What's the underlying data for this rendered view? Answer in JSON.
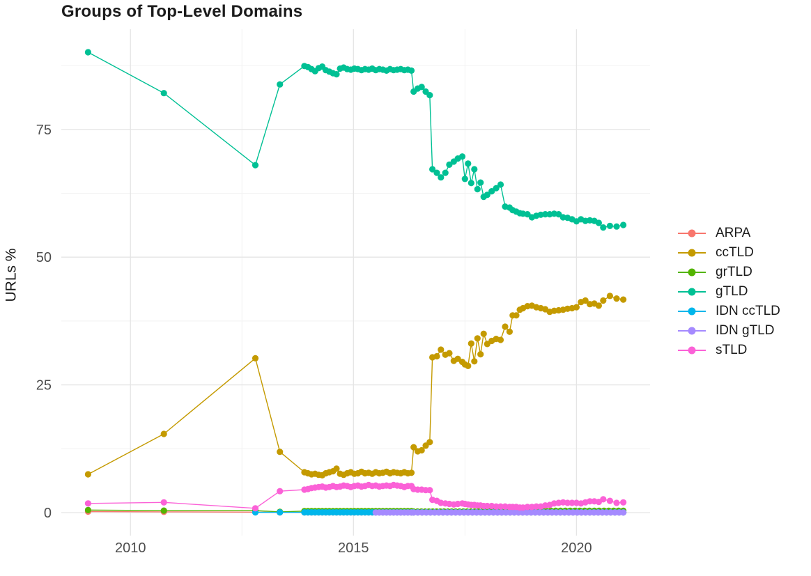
{
  "chart_data": {
    "type": "line",
    "title": "Groups of Top-Level Domains",
    "xlabel": "",
    "ylabel": "URLs %",
    "xlim": [
      2008.45,
      2021.65
    ],
    "ylim": [
      -4.5,
      94.6
    ],
    "x_ticks": [
      2010,
      2015,
      2020
    ],
    "x_tick_labels": [
      "2010",
      "2015",
      "2020"
    ],
    "x_minor": [
      2012.5,
      2017.5
    ],
    "y_ticks": [
      0,
      25,
      50,
      75
    ],
    "y_tick_labels": [
      "0",
      "25",
      "50",
      "75"
    ],
    "y_minor": [
      12.5,
      37.5,
      62.5,
      87.5
    ],
    "grid": true,
    "legend_position": "right",
    "colors": {
      "major_grid": "#e5e5e5",
      "minor_grid": "#f2f2f2",
      "tick_text": "#4d4d4d"
    },
    "series": [
      {
        "name": "ARPA",
        "color": "#F8766D",
        "points": [
          [
            2009.05,
            0.2
          ],
          [
            2010.75,
            0.15
          ],
          [
            2012.8,
            0.1
          ],
          [
            2013.35,
            0.05
          ],
          {
            "from": 2013.9,
            "to": 2016.3,
            "n": 31,
            "v": 0.05
          },
          {
            "from": 2016.35,
            "to": 2021.05,
            "n": 51,
            "v": 0.05
          }
        ]
      },
      {
        "name": "ccTLD",
        "color": "#C49A00",
        "points": [
          [
            2009.05,
            7.5
          ],
          [
            2010.75,
            15.4
          ],
          [
            2012.8,
            30.2
          ],
          [
            2013.35,
            11.9
          ],
          [
            2013.9,
            7.9
          ],
          [
            2013.98,
            7.7
          ],
          [
            2014.06,
            7.5
          ],
          [
            2014.14,
            7.6
          ],
          [
            2014.22,
            7.4
          ],
          [
            2014.3,
            7.3
          ],
          [
            2014.38,
            7.7
          ],
          [
            2014.46,
            7.9
          ],
          [
            2014.54,
            8.1
          ],
          [
            2014.62,
            8.6
          ],
          [
            2014.7,
            7.6
          ],
          [
            2014.78,
            7.4
          ],
          [
            2014.86,
            7.7
          ],
          [
            2014.94,
            7.9
          ],
          [
            2015.02,
            7.6
          ],
          [
            2015.1,
            7.7
          ],
          [
            2015.18,
            8.0
          ],
          [
            2015.26,
            7.7
          ],
          [
            2015.34,
            7.8
          ],
          [
            2015.42,
            7.6
          ],
          [
            2015.5,
            7.9
          ],
          [
            2015.58,
            7.7
          ],
          [
            2015.66,
            7.8
          ],
          [
            2015.74,
            8.0
          ],
          [
            2015.82,
            7.7
          ],
          [
            2015.9,
            7.9
          ],
          [
            2015.98,
            7.8
          ],
          [
            2016.06,
            7.7
          ],
          [
            2016.14,
            7.9
          ],
          [
            2016.22,
            7.7
          ],
          [
            2016.3,
            7.8
          ],
          [
            2016.35,
            12.8
          ],
          [
            2016.44,
            12.0
          ],
          [
            2016.53,
            12.2
          ],
          [
            2016.62,
            13.1
          ],
          [
            2016.71,
            13.8
          ],
          [
            2016.77,
            30.4
          ],
          [
            2016.87,
            30.6
          ],
          [
            2016.96,
            31.9
          ],
          [
            2017.06,
            30.9
          ],
          [
            2017.15,
            31.2
          ],
          [
            2017.25,
            29.7
          ],
          [
            2017.34,
            30.1
          ],
          [
            2017.44,
            29.5
          ],
          [
            2017.5,
            29.0
          ],
          [
            2017.57,
            28.7
          ],
          [
            2017.64,
            33.1
          ],
          [
            2017.71,
            29.6
          ],
          [
            2017.78,
            34.1
          ],
          [
            2017.85,
            31.0
          ],
          [
            2017.92,
            35.0
          ],
          [
            2018.0,
            33.0
          ],
          [
            2018.1,
            33.6
          ],
          [
            2018.2,
            34.0
          ],
          [
            2018.3,
            33.8
          ],
          [
            2018.4,
            36.4
          ],
          [
            2018.5,
            35.4
          ],
          [
            2018.57,
            38.6
          ],
          [
            2018.65,
            38.6
          ],
          [
            2018.73,
            39.7
          ],
          [
            2018.8,
            40.0
          ],
          [
            2018.9,
            40.4
          ],
          [
            2019.0,
            40.5
          ],
          [
            2019.1,
            40.2
          ],
          [
            2019.2,
            40.0
          ],
          [
            2019.3,
            39.8
          ],
          [
            2019.4,
            39.3
          ],
          [
            2019.5,
            39.5
          ],
          [
            2019.6,
            39.6
          ],
          [
            2019.7,
            39.7
          ],
          [
            2019.8,
            39.9
          ],
          [
            2019.9,
            40.0
          ],
          [
            2020.0,
            40.2
          ],
          [
            2020.1,
            41.2
          ],
          [
            2020.2,
            41.5
          ],
          [
            2020.3,
            40.8
          ],
          [
            2020.4,
            40.9
          ],
          [
            2020.5,
            40.5
          ],
          [
            2020.6,
            41.5
          ],
          [
            2020.75,
            42.4
          ],
          [
            2020.9,
            41.9
          ],
          [
            2021.05,
            41.7
          ]
        ]
      },
      {
        "name": "grTLD",
        "color": "#53B400",
        "points": [
          [
            2009.05,
            0.5
          ],
          [
            2010.75,
            0.4
          ],
          [
            2012.8,
            0.4
          ],
          [
            2013.35,
            0.15
          ],
          {
            "from": 2013.9,
            "to": 2016.3,
            "n": 31,
            "v": 0.3
          },
          {
            "from": 2016.35,
            "to": 2019.0,
            "n": 32,
            "v": 0.2
          },
          {
            "from": 2019.1,
            "to": 2021.05,
            "n": 19,
            "v": 0.35
          }
        ]
      },
      {
        "name": "gTLD",
        "color": "#00C094",
        "points": [
          [
            2009.05,
            90.1
          ],
          [
            2010.75,
            82.1
          ],
          [
            2012.8,
            68.0
          ],
          [
            2013.35,
            83.8
          ],
          [
            2013.9,
            87.4
          ],
          [
            2013.98,
            87.2
          ],
          [
            2014.06,
            86.8
          ],
          [
            2014.14,
            86.4
          ],
          [
            2014.22,
            87.0
          ],
          [
            2014.3,
            87.3
          ],
          [
            2014.38,
            86.6
          ],
          [
            2014.46,
            86.3
          ],
          [
            2014.54,
            86.0
          ],
          [
            2014.62,
            85.8
          ],
          [
            2014.7,
            86.9
          ],
          [
            2014.78,
            87.1
          ],
          [
            2014.86,
            86.8
          ],
          [
            2014.94,
            86.7
          ],
          [
            2015.02,
            86.9
          ],
          [
            2015.1,
            86.8
          ],
          [
            2015.18,
            86.6
          ],
          [
            2015.26,
            86.8
          ],
          [
            2015.34,
            86.7
          ],
          [
            2015.42,
            86.9
          ],
          [
            2015.5,
            86.6
          ],
          [
            2015.58,
            86.8
          ],
          [
            2015.66,
            86.7
          ],
          [
            2015.74,
            86.5
          ],
          [
            2015.82,
            86.8
          ],
          [
            2015.9,
            86.6
          ],
          [
            2015.98,
            86.7
          ],
          [
            2016.06,
            86.8
          ],
          [
            2016.14,
            86.6
          ],
          [
            2016.22,
            86.7
          ],
          [
            2016.3,
            86.5
          ],
          [
            2016.35,
            82.4
          ],
          [
            2016.44,
            83.0
          ],
          [
            2016.53,
            83.3
          ],
          [
            2016.62,
            82.4
          ],
          [
            2016.71,
            81.7
          ],
          [
            2016.77,
            67.2
          ],
          [
            2016.87,
            66.5
          ],
          [
            2016.96,
            65.6
          ],
          [
            2017.06,
            66.5
          ],
          [
            2017.15,
            68.1
          ],
          [
            2017.25,
            68.7
          ],
          [
            2017.34,
            69.3
          ],
          [
            2017.44,
            69.7
          ],
          [
            2017.5,
            65.3
          ],
          [
            2017.57,
            68.3
          ],
          [
            2017.64,
            64.5
          ],
          [
            2017.71,
            67.2
          ],
          [
            2017.78,
            63.3
          ],
          [
            2017.85,
            64.6
          ],
          [
            2017.92,
            61.8
          ],
          [
            2018.0,
            62.2
          ],
          [
            2018.1,
            62.9
          ],
          [
            2018.2,
            63.5
          ],
          [
            2018.3,
            64.2
          ],
          [
            2018.4,
            59.9
          ],
          [
            2018.5,
            59.7
          ],
          [
            2018.57,
            59.2
          ],
          [
            2018.65,
            58.9
          ],
          [
            2018.73,
            58.6
          ],
          [
            2018.8,
            58.5
          ],
          [
            2018.9,
            58.4
          ],
          [
            2019.0,
            57.8
          ],
          [
            2019.1,
            58.1
          ],
          [
            2019.2,
            58.3
          ],
          [
            2019.3,
            58.4
          ],
          [
            2019.4,
            58.4
          ],
          [
            2019.5,
            58.5
          ],
          [
            2019.6,
            58.4
          ],
          [
            2019.7,
            57.8
          ],
          [
            2019.8,
            57.7
          ],
          [
            2019.9,
            57.4
          ],
          [
            2020.0,
            57.0
          ],
          [
            2020.1,
            57.4
          ],
          [
            2020.2,
            57.1
          ],
          [
            2020.3,
            57.2
          ],
          [
            2020.4,
            57.1
          ],
          [
            2020.5,
            56.7
          ],
          [
            2020.6,
            55.8
          ],
          [
            2020.75,
            56.1
          ],
          [
            2020.9,
            56.0
          ],
          [
            2021.05,
            56.3
          ]
        ]
      },
      {
        "name": "IDN ccTLD",
        "color": "#00B6EB",
        "points": [
          [
            2012.8,
            0.05
          ],
          [
            2013.35,
            0.05
          ],
          {
            "from": 2013.9,
            "to": 2016.3,
            "n": 31,
            "v": 0.05
          },
          {
            "from": 2016.35,
            "to": 2021.05,
            "n": 51,
            "v": 0.05
          }
        ]
      },
      {
        "name": "IDN gTLD",
        "color": "#A58AFF",
        "points": [
          {
            "from": 2015.5,
            "to": 2016.3,
            "n": 11,
            "v": 0.02
          },
          {
            "from": 2016.35,
            "to": 2021.05,
            "n": 51,
            "v": 0.02
          }
        ]
      },
      {
        "name": "sTLD",
        "color": "#FB61D7",
        "points": [
          [
            2009.05,
            1.8
          ],
          [
            2010.75,
            2.0
          ],
          [
            2012.8,
            0.85
          ],
          [
            2013.35,
            4.2
          ],
          [
            2013.9,
            4.5
          ],
          [
            2013.98,
            4.6
          ],
          [
            2014.06,
            4.8
          ],
          [
            2014.14,
            4.9
          ],
          [
            2014.22,
            5.0
          ],
          [
            2014.3,
            5.1
          ],
          [
            2014.38,
            4.9
          ],
          [
            2014.46,
            5.0
          ],
          [
            2014.54,
            5.2
          ],
          [
            2014.62,
            5.0
          ],
          [
            2014.7,
            5.1
          ],
          [
            2014.78,
            5.3
          ],
          [
            2014.86,
            5.2
          ],
          [
            2014.94,
            5.0
          ],
          [
            2015.02,
            5.2
          ],
          [
            2015.1,
            5.3
          ],
          [
            2015.18,
            5.1
          ],
          [
            2015.26,
            5.2
          ],
          [
            2015.34,
            5.4
          ],
          [
            2015.42,
            5.2
          ],
          [
            2015.5,
            5.3
          ],
          [
            2015.58,
            5.1
          ],
          [
            2015.66,
            5.2
          ],
          [
            2015.74,
            5.3
          ],
          [
            2015.82,
            5.2
          ],
          [
            2015.9,
            5.4
          ],
          [
            2015.98,
            5.3
          ],
          [
            2016.06,
            5.2
          ],
          [
            2016.14,
            5.0
          ],
          [
            2016.22,
            5.2
          ],
          [
            2016.3,
            5.2
          ],
          [
            2016.35,
            4.6
          ],
          [
            2016.44,
            4.5
          ],
          [
            2016.53,
            4.5
          ],
          [
            2016.62,
            4.4
          ],
          [
            2016.71,
            4.4
          ],
          [
            2016.77,
            2.5
          ],
          [
            2016.87,
            2.3
          ],
          [
            2016.96,
            1.9
          ],
          [
            2017.06,
            1.8
          ],
          [
            2017.15,
            1.7
          ],
          [
            2017.25,
            1.6
          ],
          [
            2017.34,
            1.7
          ],
          [
            2017.44,
            1.8
          ],
          [
            2017.5,
            1.7
          ],
          [
            2017.57,
            1.6
          ],
          [
            2017.64,
            1.5
          ],
          [
            2017.71,
            1.5
          ],
          [
            2017.78,
            1.4
          ],
          [
            2017.85,
            1.4
          ],
          [
            2017.92,
            1.3
          ],
          [
            2018.0,
            1.3
          ],
          [
            2018.1,
            1.3
          ],
          [
            2018.2,
            1.2
          ],
          [
            2018.3,
            1.2
          ],
          [
            2018.4,
            1.2
          ],
          [
            2018.5,
            1.1
          ],
          [
            2018.57,
            1.1
          ],
          [
            2018.65,
            1.1
          ],
          [
            2018.73,
            1.0
          ],
          [
            2018.8,
            1.0
          ],
          [
            2018.9,
            1.1
          ],
          [
            2019.0,
            1.1
          ],
          [
            2019.1,
            1.2
          ],
          [
            2019.2,
            1.2
          ],
          [
            2019.3,
            1.4
          ],
          [
            2019.4,
            1.5
          ],
          [
            2019.5,
            1.8
          ],
          [
            2019.6,
            1.9
          ],
          [
            2019.7,
            2.0
          ],
          [
            2019.8,
            1.9
          ],
          [
            2019.9,
            1.9
          ],
          [
            2020.0,
            1.9
          ],
          [
            2020.1,
            1.8
          ],
          [
            2020.2,
            2.0
          ],
          [
            2020.3,
            2.2
          ],
          [
            2020.4,
            2.2
          ],
          [
            2020.5,
            2.1
          ],
          [
            2020.6,
            2.6
          ],
          [
            2020.75,
            2.3
          ],
          [
            2020.9,
            1.9
          ],
          [
            2021.05,
            2.0
          ]
        ]
      }
    ]
  }
}
